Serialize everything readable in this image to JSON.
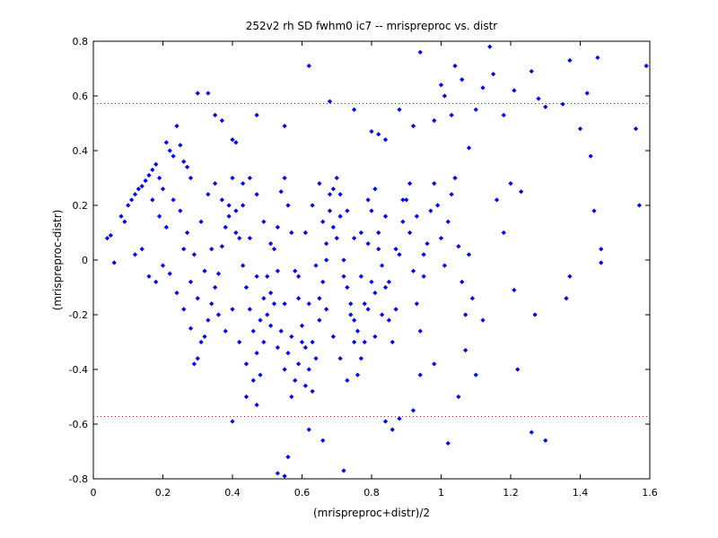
{
  "chart_data": {
    "type": "scatter",
    "title": "252v2 rh SD fwhm0 ic7 -- mrispreproc vs. distr",
    "xlabel": "(mrispreproc+distr)/2",
    "ylabel": "(mrispreproc-distr)",
    "xlim": [
      0,
      1.6
    ],
    "ylim": [
      -0.8,
      0.8
    ],
    "x_ticks": [
      0,
      0.2,
      0.4,
      0.6,
      0.8,
      1,
      1.2,
      1.4,
      1.6
    ],
    "x_tick_labels": [
      "0",
      "0.2",
      "0.4",
      "0.6",
      "0.8",
      "1",
      "1.2",
      "1.4",
      "1.6"
    ],
    "y_ticks": [
      -0.8,
      -0.6,
      -0.4,
      -0.2,
      0,
      0.2,
      0.4,
      0.6,
      0.8
    ],
    "y_tick_labels": [
      "-0.8",
      "-0.6",
      "-0.4",
      "-0.2",
      "0",
      "0.2",
      "0.4",
      "0.6",
      "0.8"
    ],
    "grid": false,
    "marker_color": "#0000ff",
    "reference_line_color": "#ff0000",
    "reference_lines_y": [
      0.572,
      -0.572
    ],
    "points": [
      [
        0.04,
        0.08
      ],
      [
        0.05,
        0.09
      ],
      [
        0.06,
        -0.01
      ],
      [
        0.08,
        0.16
      ],
      [
        0.09,
        0.14
      ],
      [
        0.1,
        0.2
      ],
      [
        0.11,
        0.22
      ],
      [
        0.12,
        0.24
      ],
      [
        0.13,
        0.26
      ],
      [
        0.14,
        0.27
      ],
      [
        0.15,
        0.29
      ],
      [
        0.16,
        0.31
      ],
      [
        0.17,
        0.33
      ],
      [
        0.18,
        0.35
      ],
      [
        0.19,
        0.3
      ],
      [
        0.2,
        0.26
      ],
      [
        0.21,
        0.43
      ],
      [
        0.22,
        0.4
      ],
      [
        0.23,
        0.38
      ],
      [
        0.24,
        0.49
      ],
      [
        0.25,
        0.42
      ],
      [
        0.26,
        0.36
      ],
      [
        0.27,
        0.34
      ],
      [
        0.28,
        0.3
      ],
      [
        0.3,
        0.61
      ],
      [
        0.33,
        0.61
      ],
      [
        0.35,
        0.53
      ],
      [
        0.37,
        0.51
      ],
      [
        0.4,
        0.44
      ],
      [
        0.41,
        0.43
      ],
      [
        0.47,
        0.53
      ],
      [
        0.55,
        0.49
      ],
      [
        0.62,
        0.71
      ],
      [
        0.68,
        0.58
      ],
      [
        0.75,
        0.55
      ],
      [
        0.8,
        0.47
      ],
      [
        0.82,
        0.46
      ],
      [
        0.84,
        0.44
      ],
      [
        0.88,
        0.55
      ],
      [
        0.92,
        0.49
      ],
      [
        0.94,
        0.76
      ],
      [
        0.98,
        0.51
      ],
      [
        1.0,
        0.64
      ],
      [
        1.01,
        0.6
      ],
      [
        1.03,
        0.53
      ],
      [
        1.04,
        0.71
      ],
      [
        1.06,
        0.66
      ],
      [
        1.08,
        0.41
      ],
      [
        1.1,
        0.55
      ],
      [
        1.12,
        0.63
      ],
      [
        1.14,
        0.78
      ],
      [
        1.15,
        0.68
      ],
      [
        1.18,
        0.53
      ],
      [
        1.21,
        0.62
      ],
      [
        1.26,
        0.69
      ],
      [
        1.28,
        0.59
      ],
      [
        1.3,
        0.56
      ],
      [
        1.35,
        0.57
      ],
      [
        1.37,
        0.73
      ],
      [
        1.42,
        0.61
      ],
      [
        1.45,
        0.74
      ],
      [
        1.59,
        0.71
      ],
      [
        1.56,
        0.48
      ],
      [
        1.57,
        0.2
      ],
      [
        1.4,
        0.48
      ],
      [
        1.43,
        0.38
      ],
      [
        1.44,
        0.18
      ],
      [
        1.46,
        0.04
      ],
      [
        1.46,
        -0.01
      ],
      [
        1.36,
        -0.14
      ],
      [
        1.37,
        -0.06
      ],
      [
        1.27,
        -0.2
      ],
      [
        1.21,
        -0.11
      ],
      [
        1.3,
        -0.66
      ],
      [
        1.26,
        -0.63
      ],
      [
        1.22,
        -0.4
      ],
      [
        1.16,
        0.22
      ],
      [
        1.2,
        0.28
      ],
      [
        1.23,
        0.25
      ],
      [
        1.18,
        0.1
      ],
      [
        1.12,
        -0.22
      ],
      [
        1.1,
        -0.42
      ],
      [
        1.07,
        -0.33
      ],
      [
        1.05,
        -0.5
      ],
      [
        1.02,
        -0.67
      ],
      [
        0.98,
        -0.38
      ],
      [
        0.94,
        -0.42
      ],
      [
        0.92,
        -0.55
      ],
      [
        0.88,
        -0.58
      ],
      [
        0.86,
        -0.62
      ],
      [
        0.84,
        -0.59
      ],
      [
        0.72,
        -0.77
      ],
      [
        0.66,
        -0.66
      ],
      [
        0.62,
        -0.62
      ],
      [
        0.56,
        -0.72
      ],
      [
        0.55,
        -0.79
      ],
      [
        0.53,
        -0.78
      ],
      [
        0.47,
        -0.53
      ],
      [
        0.44,
        -0.5
      ],
      [
        0.4,
        -0.59
      ],
      [
        0.12,
        0.02
      ],
      [
        0.14,
        0.04
      ],
      [
        0.16,
        -0.06
      ],
      [
        0.18,
        -0.08
      ],
      [
        0.2,
        -0.02
      ],
      [
        0.22,
        -0.05
      ],
      [
        0.24,
        -0.12
      ],
      [
        0.26,
        -0.18
      ],
      [
        0.28,
        -0.25
      ],
      [
        0.29,
        -0.38
      ],
      [
        0.3,
        -0.36
      ],
      [
        0.31,
        -0.3
      ],
      [
        0.32,
        -0.28
      ],
      [
        0.33,
        -0.22
      ],
      [
        0.34,
        -0.16
      ],
      [
        0.35,
        -0.1
      ],
      [
        0.36,
        -0.05
      ],
      [
        0.37,
        0.05
      ],
      [
        0.38,
        0.12
      ],
      [
        0.39,
        0.2
      ],
      [
        0.4,
        0.3
      ],
      [
        0.41,
        0.18
      ],
      [
        0.42,
        0.08
      ],
      [
        0.43,
        -0.02
      ],
      [
        0.44,
        -0.1
      ],
      [
        0.45,
        -0.18
      ],
      [
        0.46,
        -0.26
      ],
      [
        0.47,
        -0.34
      ],
      [
        0.48,
        -0.42
      ],
      [
        0.49,
        -0.3
      ],
      [
        0.5,
        -0.2
      ],
      [
        0.51,
        -0.12
      ],
      [
        0.52,
        0.04
      ],
      [
        0.53,
        0.12
      ],
      [
        0.54,
        0.25
      ],
      [
        0.55,
        0.3
      ],
      [
        0.56,
        0.2
      ],
      [
        0.57,
        0.1
      ],
      [
        0.58,
        -0.04
      ],
      [
        0.59,
        -0.14
      ],
      [
        0.6,
        -0.24
      ],
      [
        0.61,
        -0.32
      ],
      [
        0.62,
        -0.4
      ],
      [
        0.63,
        -0.48
      ],
      [
        0.64,
        -0.36
      ],
      [
        0.65,
        -0.22
      ],
      [
        0.66,
        -0.08
      ],
      [
        0.67,
        0.06
      ],
      [
        0.68,
        0.18
      ],
      [
        0.69,
        0.26
      ],
      [
        0.7,
        0.3
      ],
      [
        0.71,
        0.16
      ],
      [
        0.72,
        0.0
      ],
      [
        0.73,
        -0.1
      ],
      [
        0.74,
        -0.2
      ],
      [
        0.75,
        -0.3
      ],
      [
        0.76,
        -0.42
      ],
      [
        0.77,
        -0.36
      ],
      [
        0.78,
        -0.16
      ],
      [
        0.79,
        0.06
      ],
      [
        0.8,
        0.18
      ],
      [
        0.81,
        0.26
      ],
      [
        0.82,
        0.1
      ],
      [
        0.83,
        -0.02
      ],
      [
        0.84,
        -0.1
      ],
      [
        0.85,
        -0.22
      ],
      [
        0.86,
        -0.3
      ],
      [
        0.87,
        -0.18
      ],
      [
        0.88,
        0.02
      ],
      [
        0.89,
        0.14
      ],
      [
        0.9,
        0.22
      ],
      [
        0.91,
        0.1
      ],
      [
        0.92,
        -0.04
      ],
      [
        0.93,
        -0.16
      ],
      [
        0.94,
        -0.26
      ],
      [
        0.95,
        -0.06
      ],
      [
        0.96,
        0.06
      ],
      [
        0.97,
        0.18
      ],
      [
        0.98,
        0.28
      ],
      [
        0.99,
        0.2
      ],
      [
        1.0,
        0.08
      ],
      [
        1.01,
        -0.02
      ],
      [
        1.02,
        0.14
      ],
      [
        1.03,
        0.24
      ],
      [
        1.04,
        0.3
      ],
      [
        1.05,
        0.05
      ],
      [
        1.06,
        -0.08
      ],
      [
        1.07,
        -0.2
      ],
      [
        1.08,
        0.02
      ],
      [
        1.09,
        -0.14
      ],
      [
        0.17,
        0.22
      ],
      [
        0.19,
        0.16
      ],
      [
        0.21,
        0.12
      ],
      [
        0.23,
        0.22
      ],
      [
        0.25,
        0.18
      ],
      [
        0.27,
        0.1
      ],
      [
        0.29,
        0.02
      ],
      [
        0.31,
        0.14
      ],
      [
        0.33,
        0.24
      ],
      [
        0.35,
        0.28
      ],
      [
        0.37,
        0.22
      ],
      [
        0.39,
        0.16
      ],
      [
        0.41,
        0.1
      ],
      [
        0.43,
        0.2
      ],
      [
        0.45,
        0.3
      ],
      [
        0.47,
        0.24
      ],
      [
        0.49,
        0.14
      ],
      [
        0.51,
        0.06
      ],
      [
        0.53,
        -0.04
      ],
      [
        0.55,
        -0.16
      ],
      [
        0.57,
        -0.28
      ],
      [
        0.59,
        -0.38
      ],
      [
        0.61,
        -0.46
      ],
      [
        0.63,
        -0.3
      ],
      [
        0.65,
        -0.14
      ],
      [
        0.67,
        0.0
      ],
      [
        0.69,
        0.12
      ],
      [
        0.71,
        0.24
      ],
      [
        0.73,
        0.18
      ],
      [
        0.75,
        0.08
      ],
      [
        0.77,
        -0.06
      ],
      [
        0.79,
        -0.18
      ],
      [
        0.81,
        -0.28
      ],
      [
        0.83,
        -0.2
      ],
      [
        0.85,
        -0.08
      ],
      [
        0.87,
        0.04
      ],
      [
        0.89,
        0.22
      ],
      [
        0.91,
        0.28
      ],
      [
        0.93,
        0.16
      ],
      [
        0.95,
        0.02
      ],
      [
        0.26,
        0.04
      ],
      [
        0.28,
        -0.08
      ],
      [
        0.3,
        -0.14
      ],
      [
        0.32,
        -0.04
      ],
      [
        0.34,
        0.04
      ],
      [
        0.36,
        -0.2
      ],
      [
        0.38,
        -0.26
      ],
      [
        0.4,
        -0.18
      ],
      [
        0.42,
        -0.3
      ],
      [
        0.44,
        -0.38
      ],
      [
        0.46,
        -0.44
      ],
      [
        0.48,
        -0.22
      ],
      [
        0.5,
        -0.06
      ],
      [
        0.52,
        -0.16
      ],
      [
        0.54,
        -0.26
      ],
      [
        0.56,
        -0.34
      ],
      [
        0.58,
        -0.44
      ],
      [
        0.6,
        -0.3
      ],
      [
        0.62,
        -0.16
      ],
      [
        0.64,
        -0.02
      ],
      [
        0.66,
        0.14
      ],
      [
        0.68,
        0.24
      ],
      [
        0.7,
        0.08
      ],
      [
        0.72,
        -0.06
      ],
      [
        0.74,
        -0.16
      ],
      [
        0.76,
        -0.26
      ],
      [
        0.78,
        -0.3
      ],
      [
        0.8,
        -0.08
      ],
      [
        0.82,
        0.04
      ],
      [
        0.84,
        0.16
      ],
      [
        0.43,
        0.28
      ],
      [
        0.45,
        0.08
      ],
      [
        0.47,
        -0.06
      ],
      [
        0.49,
        -0.14
      ],
      [
        0.51,
        -0.24
      ],
      [
        0.53,
        -0.32
      ],
      [
        0.55,
        -0.4
      ],
      [
        0.57,
        -0.5
      ],
      [
        0.59,
        -0.06
      ],
      [
        0.61,
        0.1
      ],
      [
        0.63,
        0.2
      ],
      [
        0.65,
        0.28
      ],
      [
        0.67,
        -0.18
      ],
      [
        0.69,
        -0.28
      ],
      [
        0.71,
        -0.36
      ],
      [
        0.73,
        -0.44
      ],
      [
        0.75,
        -0.22
      ],
      [
        0.77,
        0.1
      ],
      [
        0.79,
        0.22
      ],
      [
        0.81,
        -0.12
      ]
    ]
  }
}
